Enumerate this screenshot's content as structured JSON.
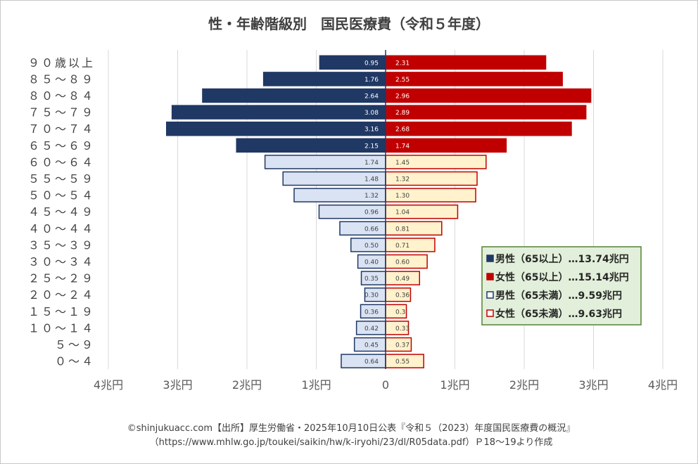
{
  "chart_data": {
    "type": "bar",
    "title": "性・年齢階級別　国民医療費（令和５年度）",
    "categories": [
      "９０歳以上",
      "８５～８９",
      "８０～８４",
      "７５～７９",
      "７０～７４",
      "６５～６９",
      "６０～６４",
      "５５～５９",
      "５０～５４",
      "４５～４９",
      "４０～４４",
      "３５～３９",
      "３０～３４",
      "２５～２９",
      "２０～２４",
      "１５～１９",
      "１０～１４",
      "５～９",
      "０～４"
    ],
    "series": [
      {
        "name": "男性",
        "values": [
          0.95,
          1.76,
          2.64,
          3.08,
          3.16,
          2.15,
          1.74,
          1.48,
          1.32,
          0.96,
          0.66,
          0.5,
          0.4,
          0.35,
          0.3,
          0.36,
          0.42,
          0.45,
          0.64
        ],
        "labels": [
          "0.95",
          "1.76",
          "2.64",
          "3.08",
          "3.16",
          "2.15",
          "1.74",
          "1.48",
          "1.32",
          "0.96",
          "0.66",
          "0.50",
          "0.40",
          "0.35",
          "0.30",
          "0.36",
          "0.42",
          "0.45",
          "0.64"
        ]
      },
      {
        "name": "女性",
        "values": [
          2.31,
          2.55,
          2.96,
          2.89,
          2.68,
          1.74,
          1.45,
          1.32,
          1.3,
          1.04,
          0.81,
          0.71,
          0.6,
          0.49,
          0.36,
          0.3,
          0.33,
          0.37,
          0.55
        ],
        "labels": [
          "2.31",
          "2.55",
          "2.96",
          "2.89",
          "2.68",
          "1.74",
          "1.45",
          "1.32",
          "1.30",
          "1.04",
          "0.81",
          "0.71",
          "0.60",
          "0.49",
          "0.36",
          "0.3",
          "0.33",
          "0.37",
          "0.55"
        ]
      }
    ],
    "xticks": [
      "4兆円",
      "3兆円",
      "2兆円",
      "1兆円",
      "0",
      "1兆円",
      "2兆円",
      "3兆円",
      "4兆円"
    ],
    "xlim": [
      -4,
      4
    ],
    "grid": true,
    "legend": {
      "placement": "bottom-right",
      "entries": [
        "男性（65以上）…13.74兆円",
        "女性（65以上）…15.14兆円",
        "男性（65未満）…9.59兆円",
        "女性（65未満）…9.63兆円"
      ]
    }
  },
  "colors": {
    "male_65_plus": "#203864",
    "female_65_plus": "#c00000",
    "male_under_65_fill": "#dae3f3",
    "male_under_65_border": "#203864",
    "female_under_65_fill": "#fff2cc",
    "female_under_65_border": "#c00000",
    "legend_bg": "#e2efda",
    "legend_border": "#548235",
    "grid": "#d9d9d9"
  },
  "source_lines": [
    "©shinjukuacc.com【出所】厚生労働省・2025年10月10日公表『令和５（2023）年度国民医療費の概況』",
    "（https://www.mhlw.go.jp/toukei/saikin/hw/k-iryohi/23/dl/R05data.pdf）Ｐ18～19より作成"
  ]
}
